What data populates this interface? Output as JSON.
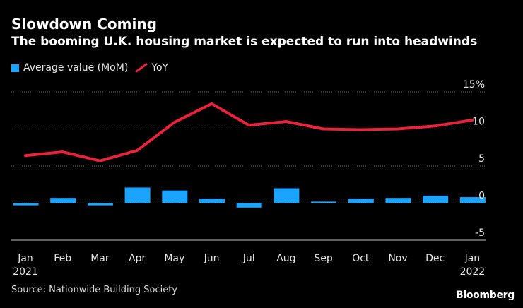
{
  "chart_data": {
    "type": "bar+line",
    "title": "Slowdown Coming",
    "subtitle": "The booming U.K. housing market is expected to run into headwinds",
    "categories": [
      "Jan 2021",
      "Feb",
      "Mar",
      "Apr",
      "May",
      "Jun",
      "Jul",
      "Aug",
      "Sep",
      "Oct",
      "Nov",
      "Dec",
      "Jan 2022"
    ],
    "x_tick_labels": [
      {
        "top": "Jan",
        "bottom": "2021"
      },
      {
        "top": "Feb",
        "bottom": ""
      },
      {
        "top": "Mar",
        "bottom": ""
      },
      {
        "top": "Apr",
        "bottom": ""
      },
      {
        "top": "May",
        "bottom": ""
      },
      {
        "top": "Jun",
        "bottom": ""
      },
      {
        "top": "Jul",
        "bottom": ""
      },
      {
        "top": "Aug",
        "bottom": ""
      },
      {
        "top": "Sep",
        "bottom": ""
      },
      {
        "top": "Oct",
        "bottom": ""
      },
      {
        "top": "Nov",
        "bottom": ""
      },
      {
        "top": "Dec",
        "bottom": ""
      },
      {
        "top": "Jan",
        "bottom": "2022"
      }
    ],
    "series": [
      {
        "name": "Average value (MoM)",
        "kind": "bar",
        "color": "#1aa3ff",
        "values": [
          -0.3,
          0.7,
          -0.3,
          2.1,
          1.7,
          0.6,
          -0.6,
          2.0,
          0.2,
          0.6,
          0.7,
          1.0,
          0.8
        ]
      },
      {
        "name": "YoY",
        "kind": "line",
        "color": "#e8233c",
        "values": [
          6.4,
          6.9,
          5.7,
          7.1,
          10.9,
          13.4,
          10.5,
          11.0,
          10.0,
          9.9,
          10.0,
          10.4,
          11.2
        ]
      }
    ],
    "y_ticks": [
      {
        "value": 15,
        "label": "15%"
      },
      {
        "value": 10,
        "label": "10"
      },
      {
        "value": 5,
        "label": "5"
      },
      {
        "value": 0,
        "label": "0"
      },
      {
        "value": -5,
        "label": "-5"
      }
    ],
    "ylim": [
      -5,
      15
    ],
    "legend_position": "top-left",
    "grid": "horizontal-dotted"
  },
  "footer": {
    "source": "Source: Nationwide Building Society",
    "brand": "Bloomberg"
  }
}
